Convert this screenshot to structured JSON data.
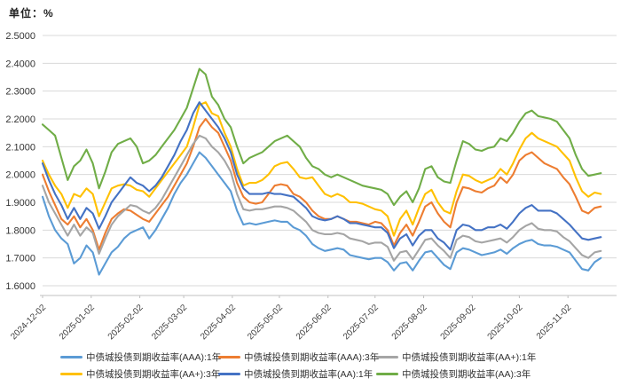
{
  "chart_data": {
    "type": "line",
    "unit_label": "单位：%",
    "grid": true,
    "legend_position": "bottom",
    "y_axis": {
      "min": 1.6,
      "max": 2.5,
      "step": 0.1,
      "tick_labels": [
        "2.5000",
        "2.4000",
        "2.3000",
        "2.2000",
        "2.1000",
        "2.0000",
        "1.9000",
        "1.8000",
        "1.7000",
        "1.6000"
      ]
    },
    "x_axis": {
      "tick_labels": [
        "2024-12-02",
        "2025-01-02",
        "2025-02-02",
        "2025-03-02",
        "2025-04-02",
        "2025-05-02",
        "2025-06-02",
        "2025-07-02",
        "2025-08-02",
        "2025-09-02",
        "2025-10-02",
        "2025-11-02"
      ],
      "tick_days": [
        0,
        31,
        62,
        90,
        121,
        151,
        182,
        212,
        243,
        274,
        304,
        335
      ],
      "domain_days": 366,
      "sample_step_days": 4
    },
    "series": [
      {
        "name": "中债城投债到期收益率(AAA):1年",
        "color": "#5B9BD5",
        "values": [
          1.92,
          1.85,
          1.8,
          1.77,
          1.75,
          1.68,
          1.7,
          1.745,
          1.72,
          1.64,
          1.68,
          1.72,
          1.74,
          1.77,
          1.79,
          1.8,
          1.81,
          1.77,
          1.8,
          1.84,
          1.88,
          1.93,
          1.97,
          2.0,
          2.04,
          2.08,
          2.06,
          2.03,
          2.0,
          1.97,
          1.94,
          1.87,
          1.82,
          1.825,
          1.82,
          1.825,
          1.83,
          1.835,
          1.83,
          1.83,
          1.81,
          1.8,
          1.78,
          1.75,
          1.735,
          1.725,
          1.73,
          1.735,
          1.73,
          1.71,
          1.705,
          1.7,
          1.695,
          1.7,
          1.7,
          1.685,
          1.655,
          1.68,
          1.685,
          1.655,
          1.69,
          1.72,
          1.725,
          1.7,
          1.675,
          1.66,
          1.72,
          1.735,
          1.73,
          1.72,
          1.71,
          1.715,
          1.72,
          1.73,
          1.715,
          1.735,
          1.75,
          1.76,
          1.765,
          1.75,
          1.745,
          1.745,
          1.74,
          1.73,
          1.72,
          1.69,
          1.66,
          1.655,
          1.685,
          1.7
        ]
      },
      {
        "name": "中债城投债到期收益率(AAA):3年",
        "color": "#ED7D31",
        "values": [
          2.0,
          1.94,
          1.89,
          1.84,
          1.82,
          1.85,
          1.81,
          1.84,
          1.8,
          1.73,
          1.79,
          1.84,
          1.86,
          1.875,
          1.87,
          1.855,
          1.84,
          1.83,
          1.86,
          1.89,
          1.92,
          1.96,
          2.0,
          2.04,
          2.1,
          2.17,
          2.2,
          2.17,
          2.15,
          2.1,
          2.05,
          1.97,
          1.92,
          1.9,
          1.895,
          1.9,
          1.93,
          1.96,
          1.965,
          1.96,
          1.93,
          1.92,
          1.9,
          1.87,
          1.85,
          1.84,
          1.84,
          1.85,
          1.84,
          1.83,
          1.83,
          1.825,
          1.82,
          1.83,
          1.825,
          1.8,
          1.745,
          1.79,
          1.82,
          1.78,
          1.83,
          1.885,
          1.9,
          1.86,
          1.83,
          1.81,
          1.9,
          1.955,
          1.95,
          1.94,
          1.935,
          1.95,
          1.96,
          1.99,
          1.97,
          2.0,
          2.05,
          2.07,
          2.08,
          2.06,
          2.04,
          2.03,
          2.02,
          1.99,
          1.965,
          1.92,
          1.87,
          1.86,
          1.88,
          1.885
        ]
      },
      {
        "name": "中债城投债到期收益率(AA+):1年",
        "color": "#A5A5A5",
        "values": [
          1.96,
          1.9,
          1.86,
          1.82,
          1.78,
          1.82,
          1.78,
          1.81,
          1.79,
          1.715,
          1.77,
          1.82,
          1.85,
          1.87,
          1.89,
          1.885,
          1.87,
          1.86,
          1.88,
          1.91,
          1.95,
          1.99,
          2.03,
          2.07,
          2.11,
          2.14,
          2.13,
          2.1,
          2.08,
          2.05,
          2.01,
          1.93,
          1.875,
          1.87,
          1.875,
          1.875,
          1.88,
          1.885,
          1.885,
          1.88,
          1.87,
          1.85,
          1.83,
          1.8,
          1.79,
          1.785,
          1.785,
          1.79,
          1.785,
          1.77,
          1.765,
          1.76,
          1.75,
          1.755,
          1.755,
          1.74,
          1.69,
          1.72,
          1.725,
          1.695,
          1.73,
          1.765,
          1.77,
          1.745,
          1.725,
          1.7,
          1.765,
          1.78,
          1.775,
          1.76,
          1.755,
          1.76,
          1.765,
          1.77,
          1.755,
          1.775,
          1.8,
          1.815,
          1.825,
          1.805,
          1.8,
          1.8,
          1.795,
          1.775,
          1.76,
          1.735,
          1.71,
          1.7,
          1.72,
          1.725
        ]
      },
      {
        "name": "中债城投债到期收益率(AA+):3年",
        "color": "#FFC000",
        "values": [
          2.05,
          2.0,
          1.96,
          1.93,
          1.88,
          1.93,
          1.92,
          1.95,
          1.93,
          1.85,
          1.9,
          1.95,
          1.96,
          1.965,
          1.96,
          1.945,
          1.94,
          1.92,
          1.95,
          1.98,
          2.01,
          2.04,
          2.07,
          2.1,
          2.17,
          2.25,
          2.26,
          2.22,
          2.21,
          2.15,
          2.1,
          2.02,
          1.96,
          1.97,
          1.97,
          1.98,
          2.0,
          2.03,
          2.04,
          2.045,
          2.02,
          1.99,
          1.985,
          1.99,
          1.96,
          1.93,
          1.92,
          1.93,
          1.92,
          1.9,
          1.9,
          1.895,
          1.885,
          1.875,
          1.87,
          1.85,
          1.78,
          1.84,
          1.87,
          1.82,
          1.88,
          1.93,
          1.945,
          1.9,
          1.87,
          1.86,
          1.94,
          2.0,
          1.995,
          1.98,
          1.97,
          1.98,
          1.99,
          2.02,
          2.0,
          2.04,
          2.09,
          2.13,
          2.15,
          2.13,
          2.12,
          2.11,
          2.1,
          2.075,
          2.05,
          1.99,
          1.94,
          1.92,
          1.935,
          1.93
        ]
      },
      {
        "name": "中债城投债到期收益率(AA):1年",
        "color": "#4472C4",
        "values": [
          2.04,
          1.98,
          1.93,
          1.89,
          1.84,
          1.88,
          1.84,
          1.88,
          1.86,
          1.805,
          1.85,
          1.9,
          1.93,
          1.96,
          1.99,
          1.97,
          1.96,
          1.94,
          1.96,
          1.99,
          2.03,
          2.07,
          2.12,
          2.16,
          2.22,
          2.26,
          2.23,
          2.2,
          2.17,
          2.13,
          2.08,
          2.0,
          1.95,
          1.93,
          1.93,
          1.93,
          1.935,
          1.93,
          1.93,
          1.925,
          1.92,
          1.9,
          1.88,
          1.85,
          1.84,
          1.835,
          1.84,
          1.85,
          1.84,
          1.825,
          1.825,
          1.82,
          1.815,
          1.81,
          1.81,
          1.79,
          1.735,
          1.77,
          1.785,
          1.745,
          1.78,
          1.8,
          1.8,
          1.77,
          1.755,
          1.73,
          1.8,
          1.82,
          1.815,
          1.8,
          1.8,
          1.81,
          1.81,
          1.82,
          1.805,
          1.83,
          1.86,
          1.88,
          1.89,
          1.87,
          1.87,
          1.87,
          1.86,
          1.84,
          1.82,
          1.795,
          1.77,
          1.765,
          1.77,
          1.775
        ]
      },
      {
        "name": "中债城投债到期收益率(AA):3年",
        "color": "#70AD47",
        "values": [
          2.18,
          2.16,
          2.14,
          2.06,
          1.98,
          2.03,
          2.05,
          2.09,
          2.04,
          1.95,
          2.01,
          2.08,
          2.11,
          2.12,
          2.13,
          2.1,
          2.04,
          2.05,
          2.07,
          2.1,
          2.13,
          2.16,
          2.2,
          2.24,
          2.31,
          2.38,
          2.36,
          2.28,
          2.25,
          2.2,
          2.17,
          2.1,
          2.04,
          2.06,
          2.07,
          2.08,
          2.1,
          2.12,
          2.13,
          2.14,
          2.12,
          2.1,
          2.06,
          2.03,
          2.02,
          2.0,
          1.99,
          2.0,
          1.99,
          1.98,
          1.97,
          1.96,
          1.955,
          1.95,
          1.945,
          1.93,
          1.89,
          1.92,
          1.94,
          1.9,
          1.95,
          2.02,
          2.03,
          1.99,
          1.975,
          1.97,
          2.05,
          2.12,
          2.11,
          2.09,
          2.085,
          2.095,
          2.1,
          2.13,
          2.12,
          2.15,
          2.19,
          2.22,
          2.23,
          2.21,
          2.205,
          2.2,
          2.19,
          2.16,
          2.13,
          2.07,
          2.02,
          1.995,
          2.0,
          2.005
        ]
      }
    ],
    "style": {
      "gridline_color": "#d9d9d9",
      "axis_line_color": "#c0c0c0",
      "line_width": 2.1
    }
  }
}
